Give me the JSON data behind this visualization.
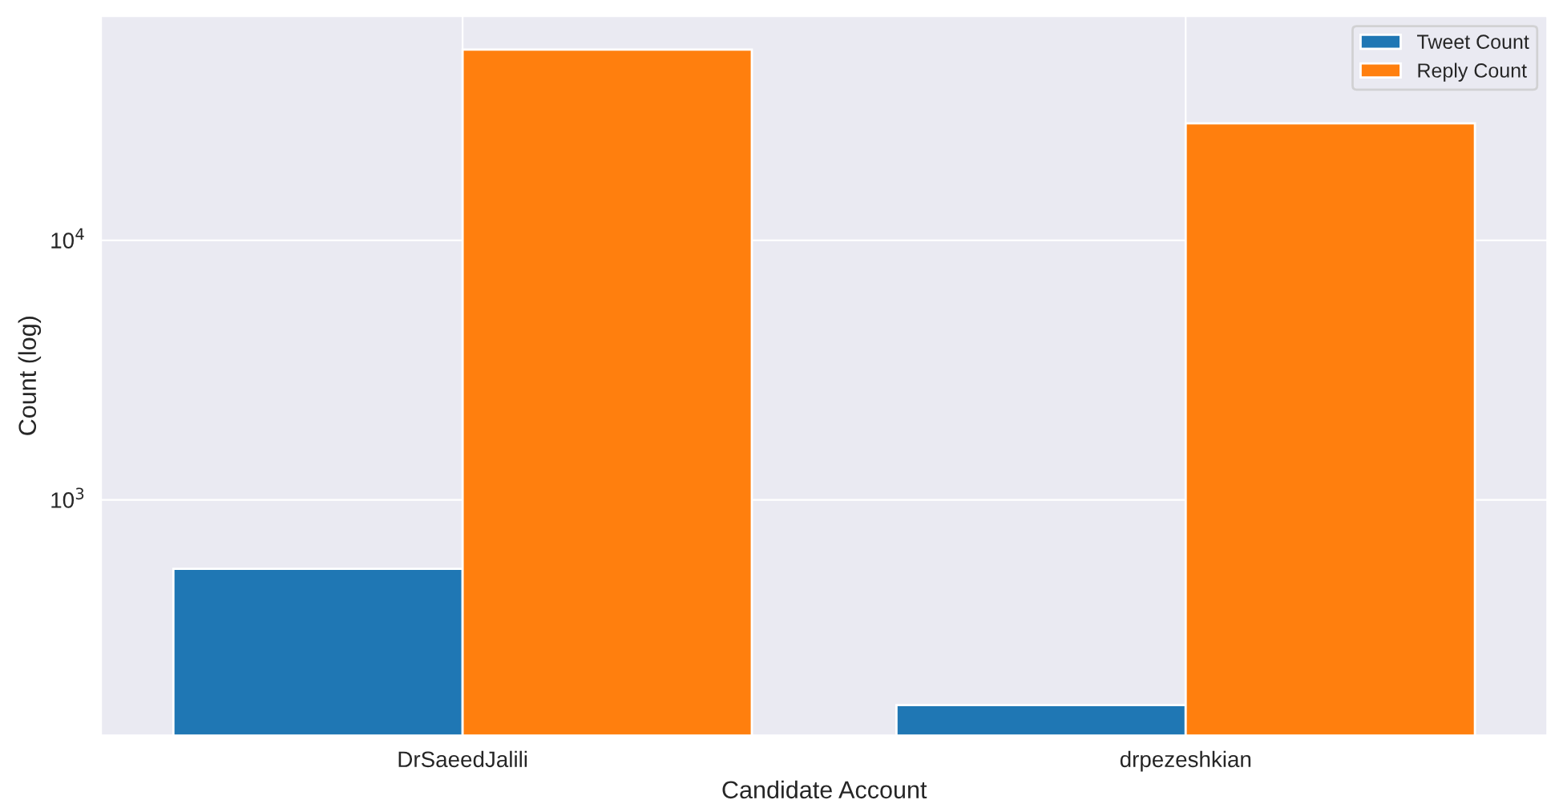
{
  "chart_data": {
    "type": "bar",
    "xlabel": "Candidate Account",
    "ylabel": "Count (log)",
    "categories": [
      "DrSaeedJalili",
      "drpezeshkian"
    ],
    "series": [
      {
        "name": "Tweet Count",
        "color": "#1f77b4",
        "values": [
          543,
          162
        ]
      },
      {
        "name": "Reply Count",
        "color": "#ff7f0e",
        "values": [
          54300,
          28200
        ]
      }
    ],
    "log": "y",
    "ylim": [
      124,
      73000
    ],
    "yticks": [
      {
        "value": 1000,
        "label": "10$^{3}$"
      },
      {
        "value": 10000,
        "label": "10$^{4}$"
      }
    ],
    "grid": true,
    "legend": "top right"
  }
}
